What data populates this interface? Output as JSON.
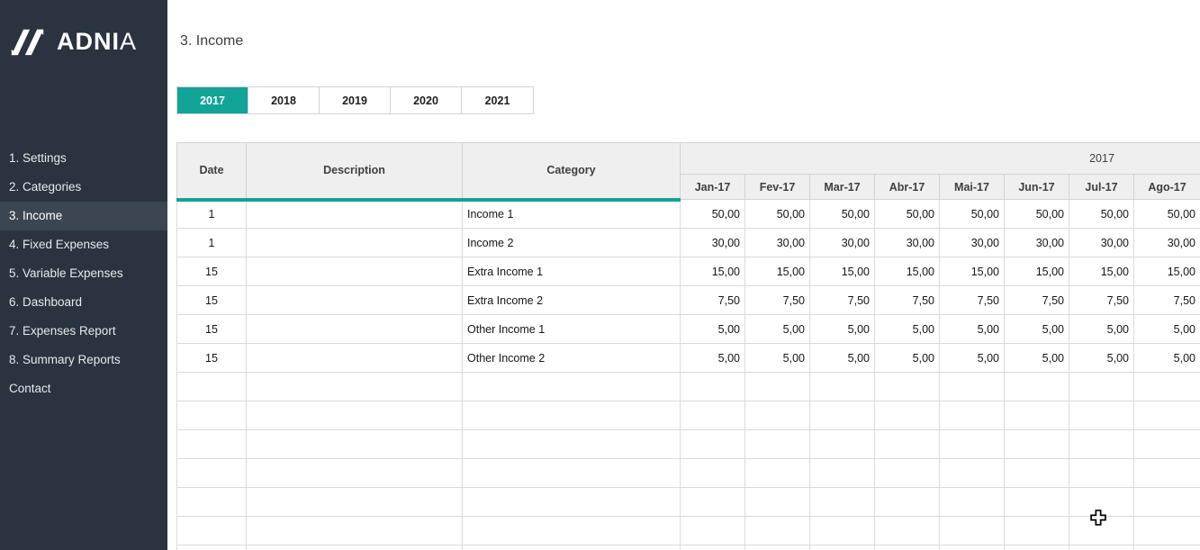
{
  "sidebar": {
    "logo_text_bold": "ADNI",
    "logo_text_light": "A",
    "items": [
      {
        "label": "1. Settings",
        "active": false
      },
      {
        "label": "2. Categories",
        "active": false
      },
      {
        "label": "3. Income",
        "active": true
      },
      {
        "label": "4. Fixed Expenses",
        "active": false
      },
      {
        "label": "5. Variable Expenses",
        "active": false
      },
      {
        "label": "6. Dashboard",
        "active": false
      },
      {
        "label": "7. Expenses Report",
        "active": false
      },
      {
        "label": "8. Summary Reports",
        "active": false
      },
      {
        "label": "Contact",
        "active": false
      }
    ]
  },
  "header": {
    "title": "3. Income"
  },
  "tabs": [
    {
      "label": "2017",
      "active": true
    },
    {
      "label": "2018",
      "active": false
    },
    {
      "label": "2019",
      "active": false
    },
    {
      "label": "2020",
      "active": false
    },
    {
      "label": "2021",
      "active": false
    }
  ],
  "table": {
    "columns": {
      "date": "Date",
      "description": "Description",
      "category": "Category"
    },
    "year_header": "2017",
    "months": [
      "Jan-17",
      "Fev-17",
      "Mar-17",
      "Abr-17",
      "Mai-17",
      "Jun-17",
      "Jul-17",
      "Ago-17"
    ],
    "rows": [
      {
        "date": "1",
        "description": "",
        "category": "Income 1",
        "values": [
          "50,00",
          "50,00",
          "50,00",
          "50,00",
          "50,00",
          "50,00",
          "50,00",
          "50,00"
        ]
      },
      {
        "date": "1",
        "description": "",
        "category": "Income 2",
        "values": [
          "30,00",
          "30,00",
          "30,00",
          "30,00",
          "30,00",
          "30,00",
          "30,00",
          "30,00"
        ]
      },
      {
        "date": "15",
        "description": "",
        "category": "Extra Income 1",
        "values": [
          "15,00",
          "15,00",
          "15,00",
          "15,00",
          "15,00",
          "15,00",
          "15,00",
          "15,00"
        ]
      },
      {
        "date": "15",
        "description": "",
        "category": "Extra Income 2",
        "values": [
          "7,50",
          "7,50",
          "7,50",
          "7,50",
          "7,50",
          "7,50",
          "7,50",
          "7,50"
        ]
      },
      {
        "date": "15",
        "description": "",
        "category": "Other Income 1",
        "values": [
          "5,00",
          "5,00",
          "5,00",
          "5,00",
          "5,00",
          "5,00",
          "5,00",
          "5,00"
        ]
      },
      {
        "date": "15",
        "description": "",
        "category": "Other Income 2",
        "values": [
          "5,00",
          "5,00",
          "5,00",
          "5,00",
          "5,00",
          "5,00",
          "5,00",
          "5,00"
        ]
      }
    ],
    "empty_row_count": 7
  },
  "colors": {
    "accent_teal": "#11A497",
    "sidebar_bg": "#2A333F",
    "sidebar_active_bg": "#3C4652",
    "header_cell_bg": "#EFEFEF"
  },
  "cursor": {
    "icon": "excel-plus-cursor"
  }
}
